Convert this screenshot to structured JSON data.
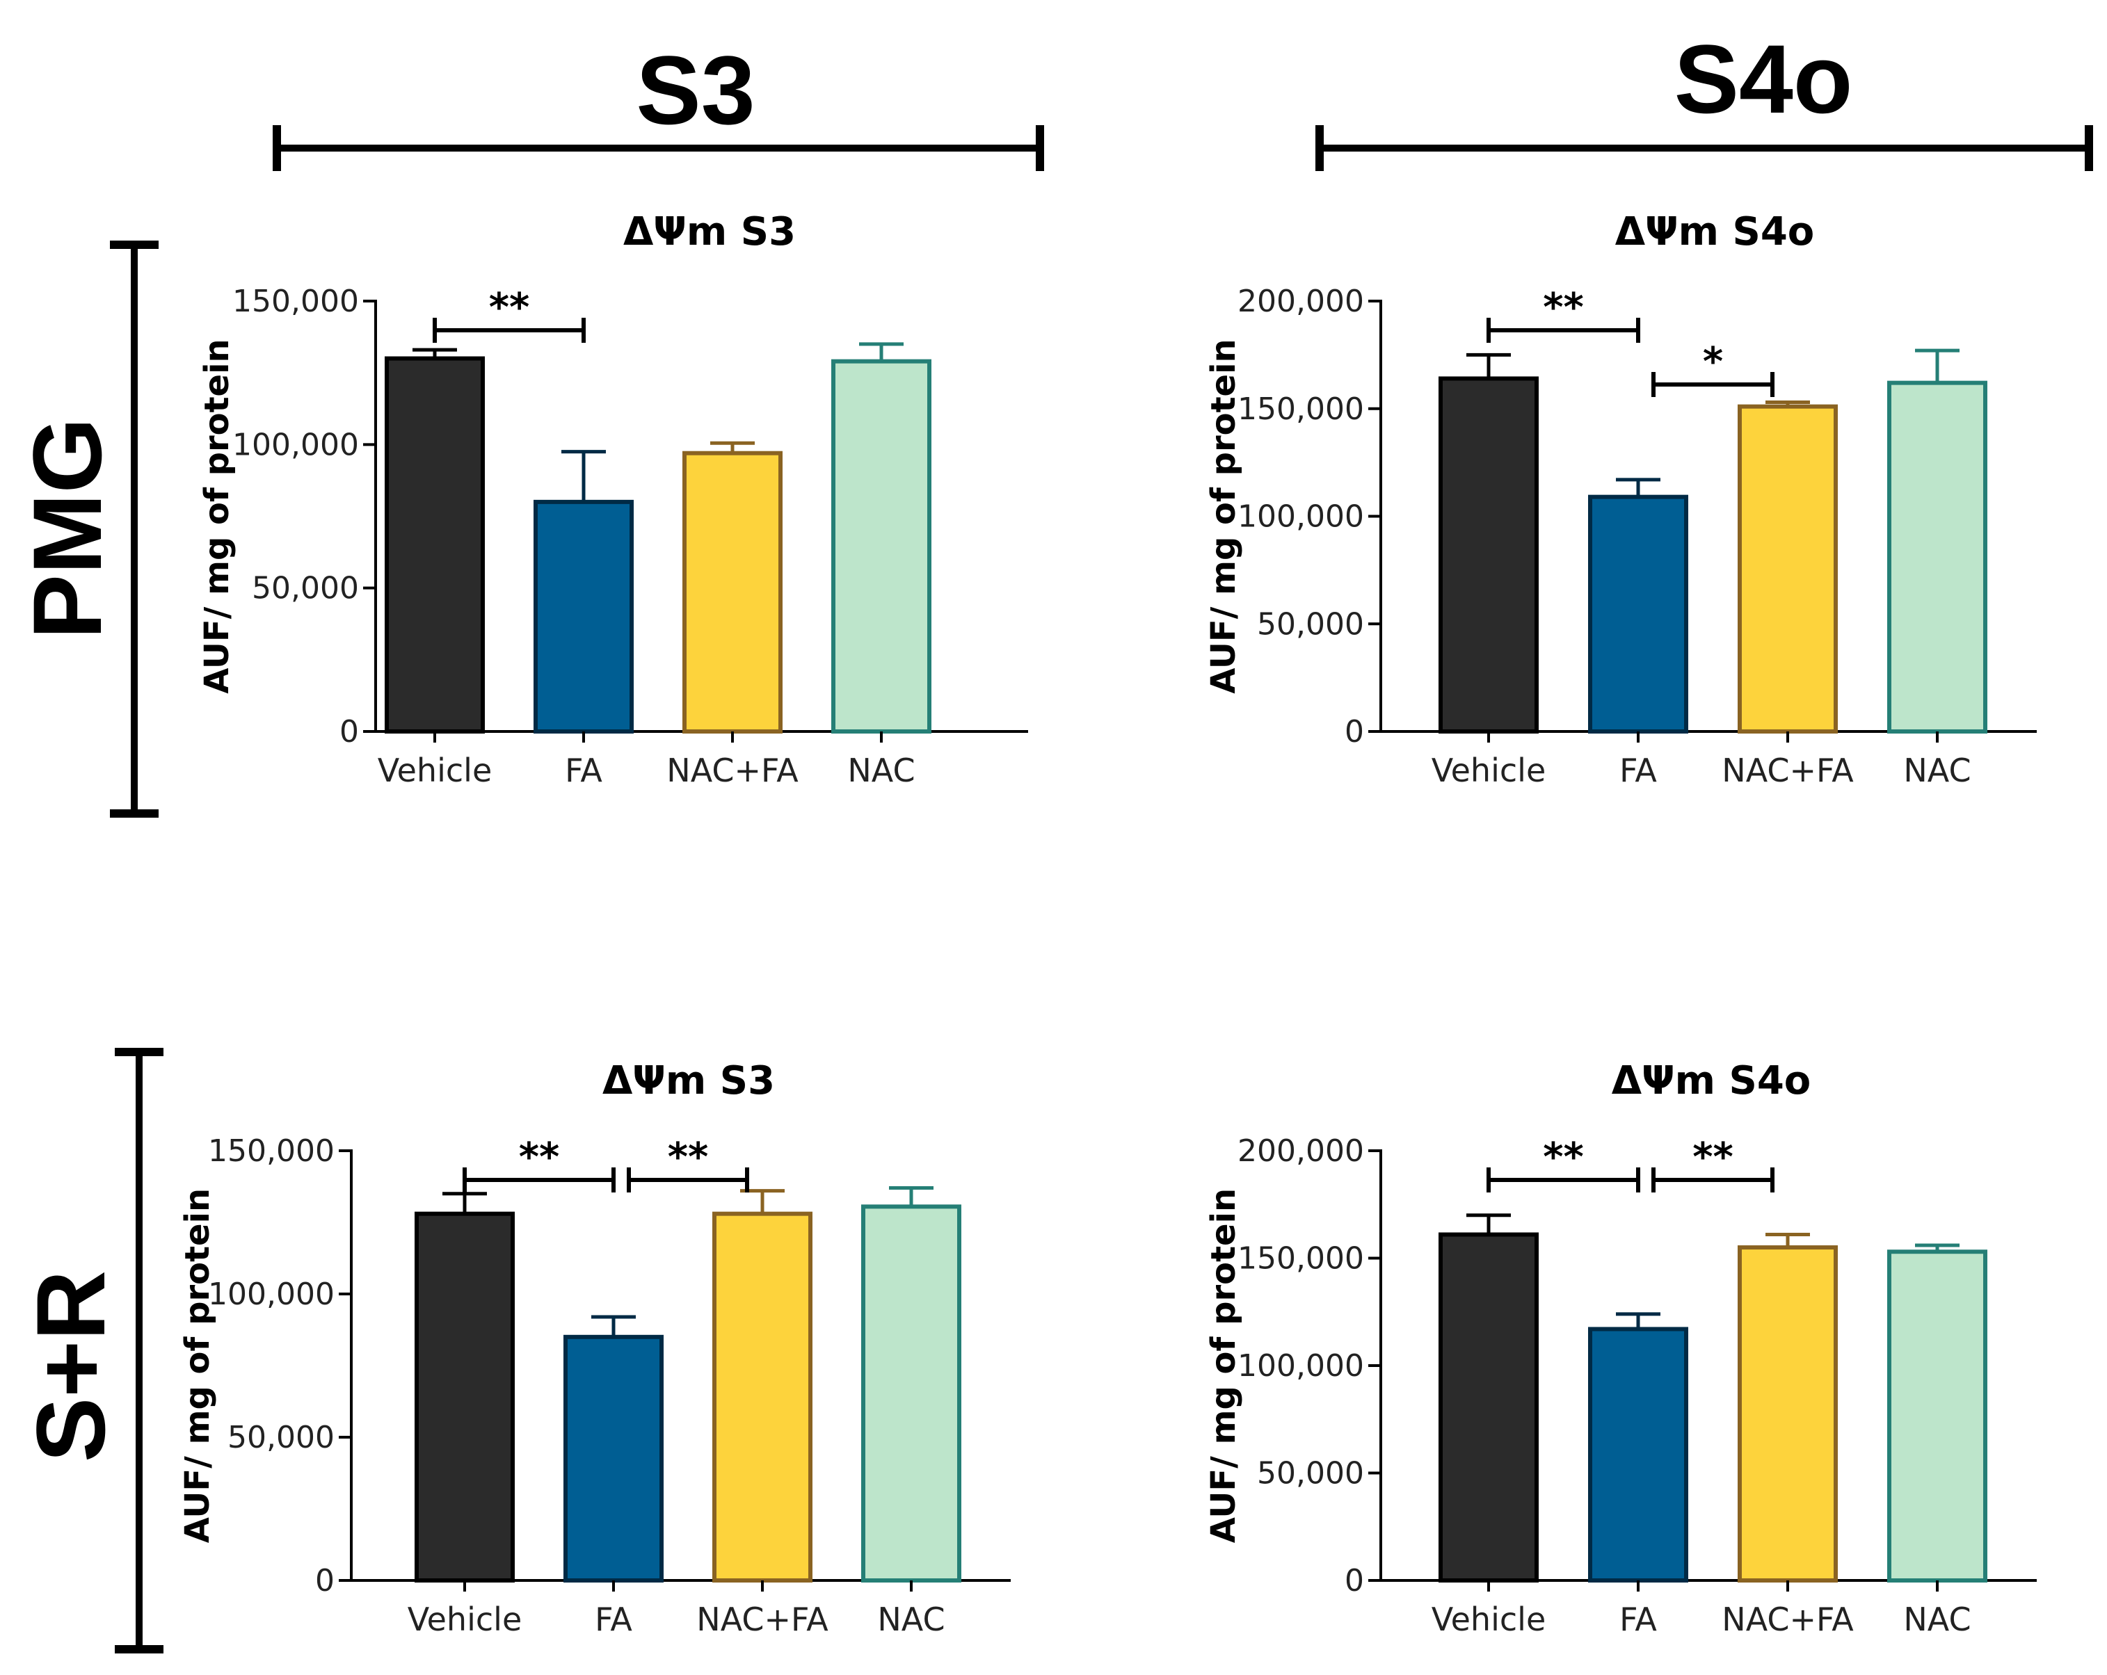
{
  "column_headers": [
    "S3",
    "S4o"
  ],
  "row_headers": [
    "PMG",
    "S+R"
  ],
  "colors": {
    "Vehicle": {
      "fill": "#2b2b2b",
      "stroke": "#000000"
    },
    "FA": {
      "fill": "#005e93",
      "stroke": "#002a45"
    },
    "NAC+FA": {
      "fill": "#fdd33c",
      "stroke": "#8a6322"
    },
    "NAC": {
      "fill": "#bde5cb",
      "stroke": "#257f76"
    }
  },
  "chart_data": [
    {
      "type": "bar",
      "panel": "PMG-S3",
      "title": "ΔΨm S3",
      "ylabel": "AUF/ mg of protein",
      "xlabel": "",
      "ylim": [
        0,
        150000
      ],
      "yticks": [
        0,
        50000,
        100000,
        150000
      ],
      "ytick_labels": [
        "0",
        "50,000",
        "100,000",
        "150,000"
      ],
      "categories": [
        "Vehicle",
        "FA",
        "NAC+FA",
        "NAC"
      ],
      "values": [
        130000,
        80000,
        97000,
        129000
      ],
      "errors": [
        3000,
        17500,
        3500,
        6000
      ],
      "significance": [
        {
          "from": 0,
          "to": 1,
          "label": "**"
        }
      ]
    },
    {
      "type": "bar",
      "panel": "PMG-S4o",
      "title": "ΔΨm S4o",
      "ylabel": "AUF/ mg of protein",
      "xlabel": "",
      "ylim": [
        0,
        200000
      ],
      "yticks": [
        0,
        50000,
        100000,
        150000,
        200000
      ],
      "ytick_labels": [
        "0",
        "50,000",
        "100,000",
        "150,000",
        "200,000"
      ],
      "categories": [
        "Vehicle",
        "FA",
        "NAC+FA",
        "NAC"
      ],
      "values": [
        164000,
        109000,
        151000,
        162000
      ],
      "errors": [
        11000,
        8000,
        2000,
        15000
      ],
      "significance": [
        {
          "from": 0,
          "to": 1,
          "label": "**"
        },
        {
          "from": 1,
          "to": 2,
          "label": "*"
        }
      ]
    },
    {
      "type": "bar",
      "panel": "SR-S3",
      "title": "ΔΨm S3",
      "ylabel": "AUF/ mg of protein",
      "xlabel": "",
      "ylim": [
        0,
        150000
      ],
      "yticks": [
        0,
        50000,
        100000,
        150000
      ],
      "ytick_labels": [
        "0",
        "50,000",
        "100,000",
        "150,000"
      ],
      "categories": [
        "Vehicle",
        "FA",
        "NAC+FA",
        "NAC"
      ],
      "values": [
        128000,
        85000,
        128000,
        130500
      ],
      "errors": [
        7000,
        7000,
        8000,
        6500
      ],
      "significance": [
        {
          "from": 0,
          "to": 1,
          "label": "**"
        },
        {
          "from": 1,
          "to": 2,
          "label": "**"
        }
      ]
    },
    {
      "type": "bar",
      "panel": "SR-S4o",
      "title": "ΔΨm S4o",
      "ylabel": "AUF/ mg of protein",
      "xlabel": "",
      "ylim": [
        0,
        200000
      ],
      "yticks": [
        0,
        50000,
        100000,
        150000,
        200000
      ],
      "ytick_labels": [
        "0",
        "50,000",
        "100,000",
        "150,000",
        "200,000"
      ],
      "categories": [
        "Vehicle",
        "FA",
        "NAC+FA",
        "NAC"
      ],
      "values": [
        161000,
        117000,
        155000,
        153000
      ],
      "errors": [
        9000,
        7000,
        6000,
        3000
      ],
      "significance": [
        {
          "from": 0,
          "to": 1,
          "label": "**"
        },
        {
          "from": 1,
          "to": 2,
          "label": "**"
        }
      ]
    }
  ]
}
